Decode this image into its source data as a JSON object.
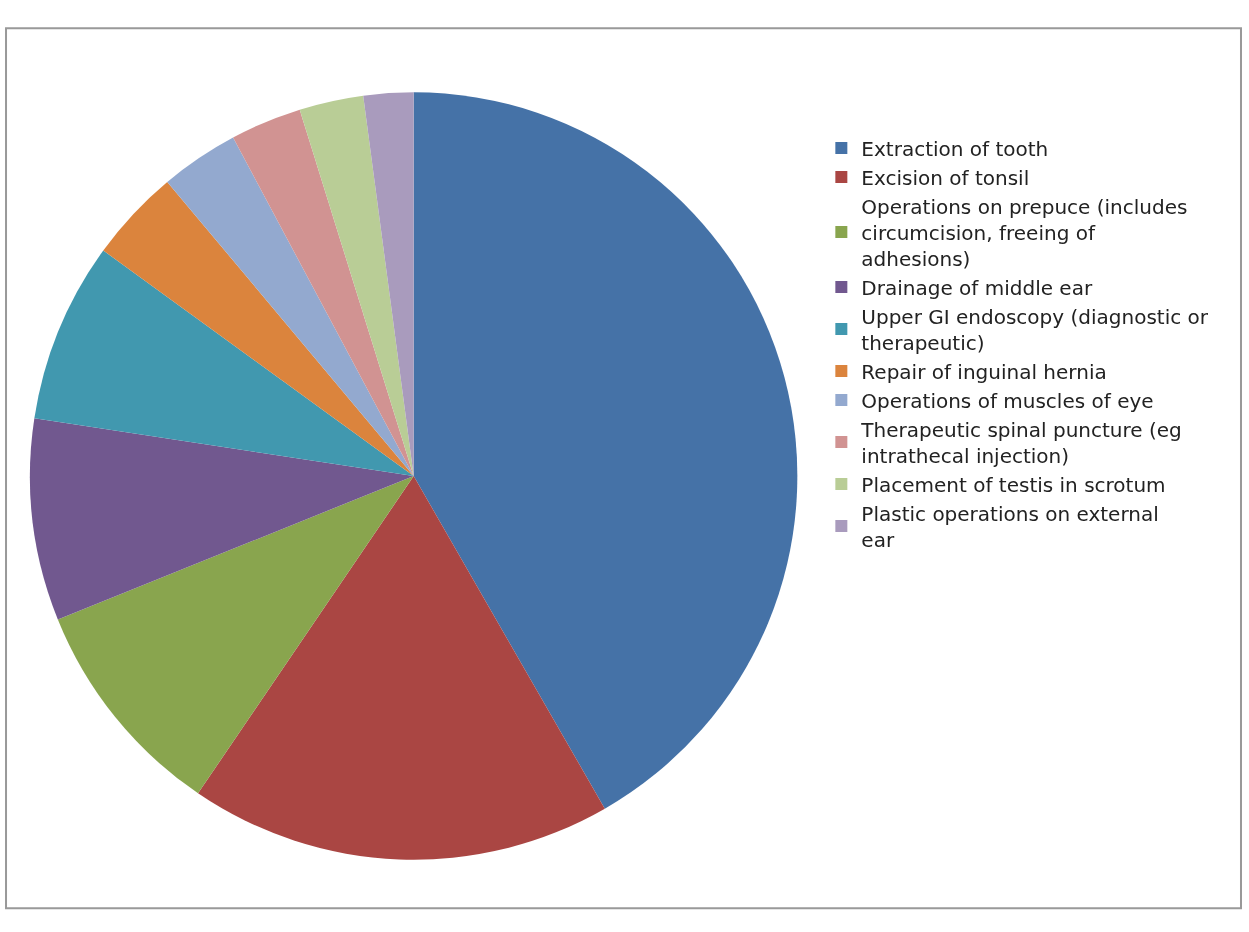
{
  "chart_data": {
    "type": "pie",
    "categories": [
      "Extraction of tooth",
      "Excision of tonsil",
      "Operations on prepuce (includes circumcision, freeing of adhesions)",
      "Drainage of middle ear",
      "Upper GI endoscopy (diagnostic or therapeutic)",
      "Repair of inguinal hernia",
      "Operations of muscles of eye",
      "Therapeutic spinal puncture (eg intrathecal injection)",
      "Placement of testis in scrotum",
      "Plastic operations on external ear"
    ],
    "values": [
      41.7,
      17.8,
      9.4,
      8.5,
      7.6,
      3.9,
      3.3,
      3.0,
      2.7,
      2.1
    ],
    "colors": [
      "#4572a7",
      "#aa4643",
      "#89a54e",
      "#71588f",
      "#4198af",
      "#db843d",
      "#93a9cf",
      "#d19392",
      "#b9cd96",
      "#a99bbd"
    ],
    "legend": "right"
  }
}
